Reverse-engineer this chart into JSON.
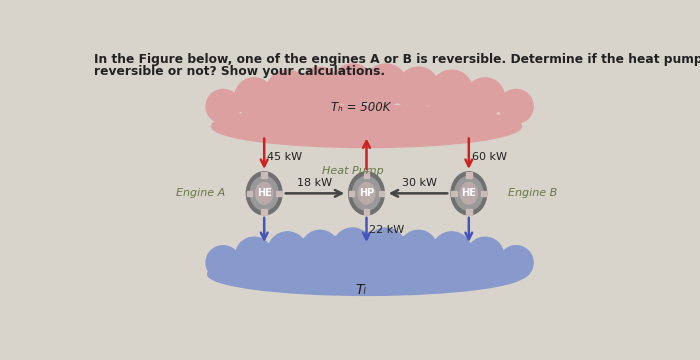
{
  "title_line1": "In the Figure below, one of the engines A or B is reversible. Determine if the heat pump is",
  "title_line2": "reversible or not? Show your calculations.",
  "TH_label": "Tₕ = 500K",
  "TL_label": "Tₗ",
  "heat_pump_label": "Heat Pump",
  "engine_a_label": "Engine A",
  "engine_b_label": "Engine B",
  "HE_label": "HE",
  "HP_label": "HP",
  "val_45": "45 kW",
  "val_60": "60 kW",
  "val_18": "18 kW",
  "val_30": "30 kW",
  "val_22": "22 kW",
  "hot_reservoir_color": "#dda0a0",
  "cold_reservoir_color": "#8899cc",
  "device_outer_color": "#707070",
  "device_mid_color": "#999999",
  "device_inner_color": "#bbaaaa",
  "sq_color": "#ccbbbb",
  "red_arrow_color": "#cc2222",
  "blue_arrow_color": "#4455bb",
  "dark_arrow_color": "#444444",
  "green_text_color": "#667744",
  "text_color": "#222222",
  "bg_color": "#ddd8d0",
  "fig_bg": "#d8d4cc"
}
